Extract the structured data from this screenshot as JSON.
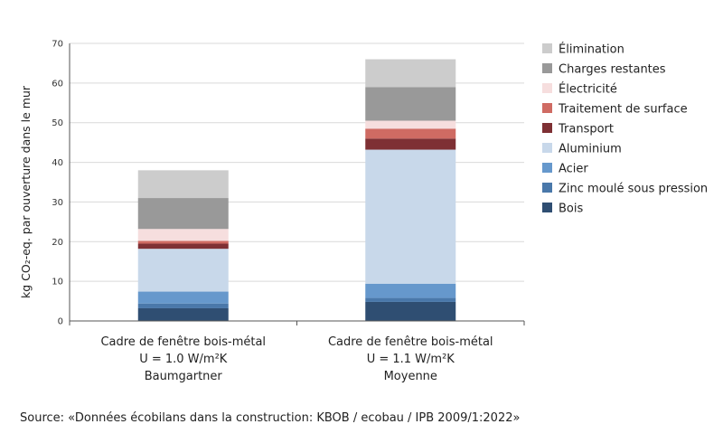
{
  "chart_data": {
    "type": "bar",
    "stacked": true,
    "ylabel": "kg CO₂-eq. par ouverture dans le mur",
    "ylim": [
      0,
      70
    ],
    "yticks": [
      0,
      10,
      20,
      30,
      40,
      50,
      60,
      70
    ],
    "categories": [
      [
        "Cadre de fenêtre bois-métal",
        "U = 1.0 W/m²K",
        "Baumgartner"
      ],
      [
        "Cadre de fenêtre bois-métal",
        "U = 1.1 W/m²K",
        "Moyenne"
      ]
    ],
    "series": [
      {
        "name": "Bois",
        "color": "#2f4e72",
        "values": [
          3.2,
          4.8
        ]
      },
      {
        "name": "Zinc moulé sous pression",
        "color": "#4a78aa",
        "values": [
          1.2,
          1.0
        ]
      },
      {
        "name": "Acier",
        "color": "#6698cc",
        "values": [
          3.0,
          3.6
        ]
      },
      {
        "name": "Aluminium",
        "color": "#c8d8ea",
        "values": [
          10.8,
          33.8
        ]
      },
      {
        "name": "Transport",
        "color": "#7e3034",
        "values": [
          1.3,
          2.8
        ]
      },
      {
        "name": "Traitement de surface",
        "color": "#cf6b63",
        "values": [
          0.7,
          2.5
        ]
      },
      {
        "name": "Électricité",
        "color": "#f6dede",
        "values": [
          3.0,
          2.0
        ]
      },
      {
        "name": "Charges restantes",
        "color": "#999999",
        "values": [
          7.8,
          8.5
        ]
      },
      {
        "name": "Élimination",
        "color": "#cccccc",
        "values": [
          7.0,
          7.0
        ]
      }
    ]
  },
  "source": "Source: «Données écobilans dans la construction: KBOB / ecobau / IPB 2009/1:2022»"
}
